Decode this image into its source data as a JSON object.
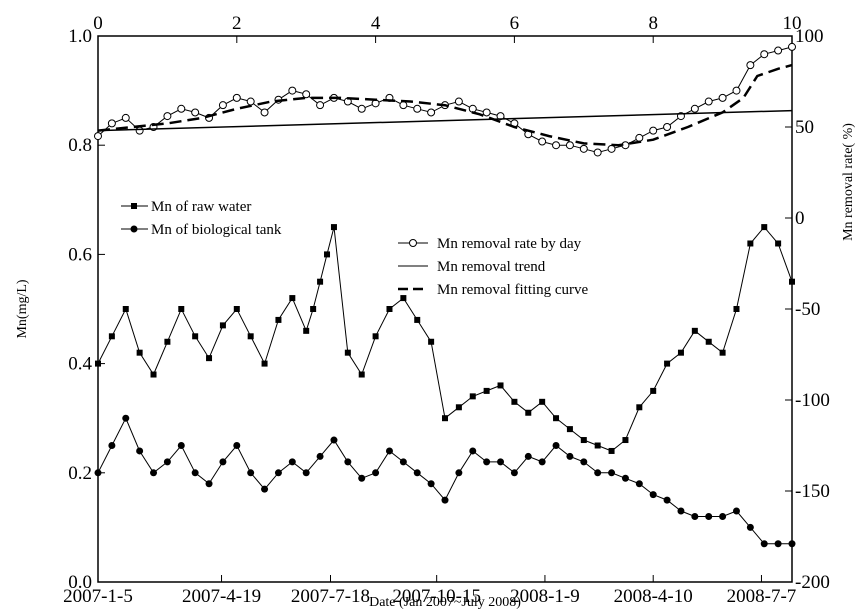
{
  "chart_data": {
    "type": "line",
    "xlabel": "Date (Jan 2007~July 2008)",
    "ylabel": "Mn(mg/L)",
    "y2label": "Mn removal rate( %)",
    "x_range": [
      0,
      10
    ],
    "ylim": [
      0,
      1.0
    ],
    "y2lim": [
      -200,
      100
    ],
    "bottom_ticks": [
      {
        "x": 0,
        "label": "2007-1-5"
      },
      {
        "x": 1.78,
        "label": "2007-4-19"
      },
      {
        "x": 3.35,
        "label": "2007-7-18"
      },
      {
        "x": 4.88,
        "label": "2007-10-15"
      },
      {
        "x": 6.44,
        "label": "2008-1-9"
      },
      {
        "x": 8.0,
        "label": "2008-4-10"
      },
      {
        "x": 9.56,
        "label": "2008-7-7"
      }
    ],
    "top_ticks": [
      0,
      2,
      4,
      6,
      8,
      10
    ],
    "left_ticks": [
      {
        "v": 0,
        "label": "0.0"
      },
      {
        "v": 0.2,
        "label": "0.2"
      },
      {
        "v": 0.4,
        "label": "0.4"
      },
      {
        "v": 0.6,
        "label": "0.6"
      },
      {
        "v": 0.8,
        "label": "0.8"
      },
      {
        "v": 1.0,
        "label": "1.0"
      }
    ],
    "right_ticks": [
      {
        "v": -200,
        "label": "-200"
      },
      {
        "v": -150,
        "label": "-150"
      },
      {
        "v": -100,
        "label": "-100"
      },
      {
        "v": -50,
        "label": "-50"
      },
      {
        "v": 0,
        "label": "0"
      },
      {
        "v": 50,
        "label": "50"
      },
      {
        "v": 100,
        "label": "100"
      }
    ],
    "legend_left": [
      "Mn of raw water",
      "Mn of biological tank"
    ],
    "legend_right": [
      "Mn removal rate by day",
      "Mn removal trend",
      "Mn removal fitting curve"
    ],
    "series": [
      {
        "name": "Mn of raw water",
        "axis": "left",
        "marker": "square",
        "x": [
          0.0,
          0.2,
          0.4,
          0.6,
          0.8,
          1.0,
          1.2,
          1.4,
          1.6,
          1.8,
          2.0,
          2.2,
          2.4,
          2.6,
          2.8,
          3.0,
          3.1,
          3.2,
          3.3,
          3.4,
          3.6,
          3.8,
          4.0,
          4.2,
          4.4,
          4.6,
          4.8,
          5.0,
          5.2,
          5.4,
          5.6,
          5.8,
          6.0,
          6.2,
          6.4,
          6.6,
          6.8,
          7.0,
          7.2,
          7.4,
          7.6,
          7.8,
          8.0,
          8.2,
          8.4,
          8.6,
          8.8,
          9.0,
          9.2,
          9.4,
          9.6,
          9.8,
          10.0
        ],
        "values": [
          0.4,
          0.45,
          0.5,
          0.42,
          0.38,
          0.44,
          0.5,
          0.45,
          0.41,
          0.47,
          0.5,
          0.45,
          0.4,
          0.48,
          0.52,
          0.46,
          0.5,
          0.55,
          0.6,
          0.65,
          0.42,
          0.38,
          0.45,
          0.5,
          0.52,
          0.48,
          0.44,
          0.3,
          0.32,
          0.34,
          0.35,
          0.36,
          0.33,
          0.31,
          0.33,
          0.3,
          0.28,
          0.26,
          0.25,
          0.24,
          0.26,
          0.32,
          0.35,
          0.4,
          0.42,
          0.46,
          0.44,
          0.42,
          0.5,
          0.62,
          0.65,
          0.62,
          0.55
        ]
      },
      {
        "name": "Mn of biological tank",
        "axis": "left",
        "marker": "circle",
        "x": [
          0.0,
          0.2,
          0.4,
          0.6,
          0.8,
          1.0,
          1.2,
          1.4,
          1.6,
          1.8,
          2.0,
          2.2,
          2.4,
          2.6,
          2.8,
          3.0,
          3.2,
          3.4,
          3.6,
          3.8,
          4.0,
          4.2,
          4.4,
          4.6,
          4.8,
          5.0,
          5.2,
          5.4,
          5.6,
          5.8,
          6.0,
          6.2,
          6.4,
          6.6,
          6.8,
          7.0,
          7.2,
          7.4,
          7.6,
          7.8,
          8.0,
          8.2,
          8.4,
          8.6,
          8.8,
          9.0,
          9.2,
          9.4,
          9.6,
          9.8,
          10.0
        ],
        "values": [
          0.2,
          0.25,
          0.3,
          0.24,
          0.2,
          0.22,
          0.25,
          0.2,
          0.18,
          0.22,
          0.25,
          0.2,
          0.17,
          0.2,
          0.22,
          0.2,
          0.23,
          0.26,
          0.22,
          0.19,
          0.2,
          0.24,
          0.22,
          0.2,
          0.18,
          0.15,
          0.2,
          0.24,
          0.22,
          0.22,
          0.2,
          0.23,
          0.22,
          0.25,
          0.23,
          0.22,
          0.2,
          0.2,
          0.19,
          0.18,
          0.16,
          0.15,
          0.13,
          0.12,
          0.12,
          0.12,
          0.13,
          0.1,
          0.07,
          0.07,
          0.07
        ]
      },
      {
        "name": "Mn removal rate by day",
        "axis": "right",
        "marker": "open-circle",
        "x": [
          0.0,
          0.2,
          0.4,
          0.6,
          0.8,
          1.0,
          1.2,
          1.4,
          1.6,
          1.8,
          2.0,
          2.2,
          2.4,
          2.6,
          2.8,
          3.0,
          3.2,
          3.4,
          3.6,
          3.8,
          4.0,
          4.2,
          4.4,
          4.6,
          4.8,
          5.0,
          5.2,
          5.4,
          5.6,
          5.8,
          6.0,
          6.2,
          6.4,
          6.6,
          6.8,
          7.0,
          7.2,
          7.4,
          7.6,
          7.8,
          8.0,
          8.2,
          8.4,
          8.6,
          8.8,
          9.0,
          9.2,
          9.4,
          9.6,
          9.8,
          10.0
        ],
        "values": [
          45,
          52,
          55,
          48,
          50,
          56,
          60,
          58,
          55,
          62,
          66,
          64,
          58,
          65,
          70,
          68,
          62,
          66,
          64,
          60,
          63,
          66,
          62,
          60,
          58,
          62,
          64,
          60,
          58,
          56,
          52,
          46,
          42,
          40,
          40,
          38,
          36,
          38,
          40,
          44,
          48,
          50,
          56,
          60,
          64,
          66,
          70,
          84,
          90,
          92,
          94
        ]
      },
      {
        "name": "Mn removal trend",
        "axis": "right",
        "x": [
          0,
          10
        ],
        "values": [
          48,
          59
        ]
      },
      {
        "name": "Mn removal fitting curve",
        "axis": "right",
        "x": [
          0.0,
          0.5,
          1.0,
          1.5,
          2.0,
          2.5,
          3.0,
          3.5,
          4.0,
          4.5,
          5.0,
          5.5,
          6.0,
          6.5,
          7.0,
          7.5,
          8.0,
          8.5,
          9.0,
          9.3,
          9.5,
          9.8,
          10.0
        ],
        "values": [
          48,
          50,
          52,
          55,
          60,
          64,
          66,
          66,
          65,
          64,
          62,
          57,
          50,
          45,
          41,
          40,
          43,
          50,
          58,
          66,
          78,
          82,
          84
        ]
      }
    ]
  }
}
